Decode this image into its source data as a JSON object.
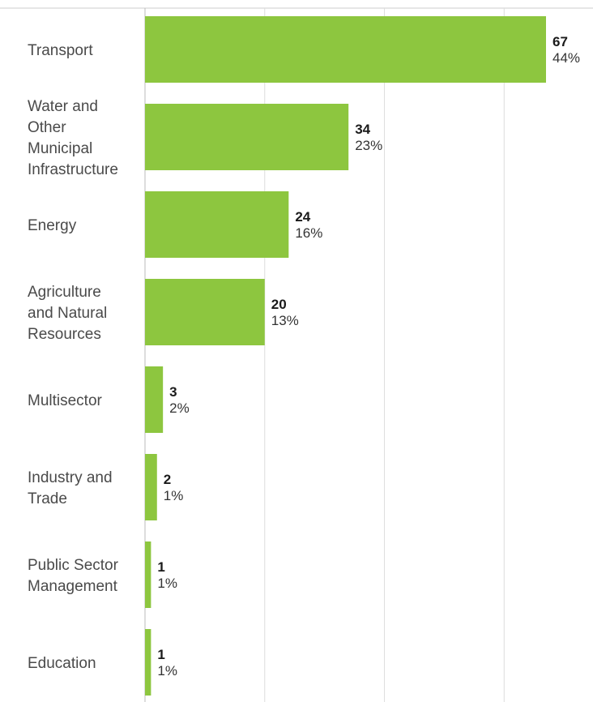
{
  "chart_data": {
    "type": "bar",
    "orientation": "horizontal",
    "categories": [
      "Transport",
      "Water and Other Municipal Infrastructure",
      "Energy",
      "Agriculture and Natural Resources",
      "Multisector",
      "Industry and Trade",
      "Public Sector Management",
      "Education"
    ],
    "category_label_lines": [
      [
        "Transport"
      ],
      [
        "Water and",
        "Other",
        "Municipal",
        "Infrastructure"
      ],
      [
        "Energy"
      ],
      [
        "Agriculture",
        "and Natural",
        "Resources"
      ],
      [
        "Multisector"
      ],
      [
        "Industry and",
        "Trade"
      ],
      [
        "Public Sector",
        "Management"
      ],
      [
        "Education"
      ]
    ],
    "values": [
      67,
      34,
      24,
      20,
      3,
      2,
      1,
      1
    ],
    "percent_labels": [
      "44%",
      "23%",
      "16%",
      "13%",
      "2%",
      "1%",
      "1%",
      "1%"
    ],
    "title": "",
    "xlabel": "",
    "ylabel": "",
    "xlim": [
      0,
      75
    ],
    "grid": true,
    "legend": "none",
    "colors": {
      "bar": "#8dc63f",
      "grid": "#dddddd"
    }
  }
}
